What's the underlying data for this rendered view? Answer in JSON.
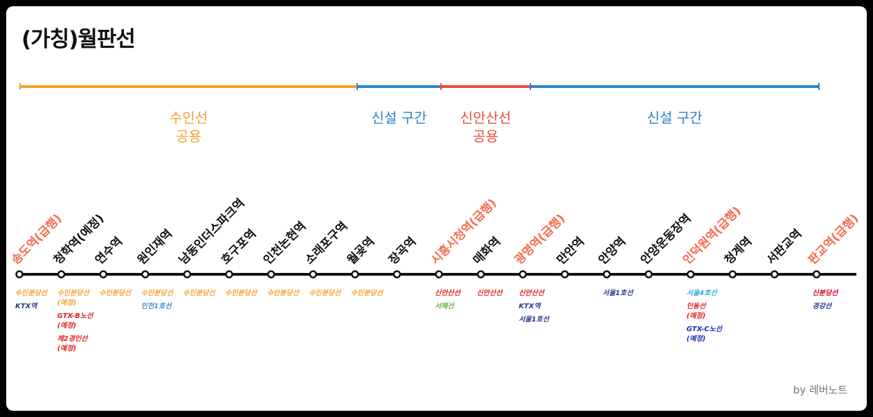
{
  "title": "(가칭)월판선",
  "credit": "by 레버노트",
  "colors": {
    "suin": "#F5A031",
    "new": "#2983C6",
    "sinansan": "#EB4E3F",
    "line": "#111111",
    "express": "#F46A4A",
    "normal": "#111111"
  },
  "sections": [
    {
      "label": "수인선\n공용",
      "color": "#F5A031",
      "from": 0,
      "to": 8
    },
    {
      "label": "신설 구간",
      "color": "#2983C6",
      "from": 8,
      "to": 10
    },
    {
      "label": "신안산선\n공용",
      "color": "#EB4E3F",
      "from": 10,
      "to": 12
    },
    {
      "label": "신설 구간",
      "color": "#2983C6",
      "from": 12,
      "to": 19
    }
  ],
  "stations": [
    {
      "name": "송도역(급행)",
      "express": true,
      "connections": [
        {
          "text": "수인분당선",
          "color": "#F5A031"
        },
        {
          "text": "KTX역",
          "color": "#2B3A8C"
        }
      ]
    },
    {
      "name": "청학역(예정)",
      "express": false,
      "connections": [
        {
          "text": "수인분당선\n(예정)",
          "color": "#F5A031"
        },
        {
          "text": "GTX-B노선\n(예정)",
          "color": "#E01E1E"
        },
        {
          "text": "제2경인선\n(예정)",
          "color": "#E01E1E"
        }
      ]
    },
    {
      "name": "연수역",
      "express": false,
      "connections": [
        {
          "text": "수인분당선",
          "color": "#F5A031"
        }
      ]
    },
    {
      "name": "원인재역",
      "express": false,
      "connections": [
        {
          "text": "수인분당선",
          "color": "#F5A031"
        },
        {
          "text": "인천1호선",
          "color": "#3C8DC9"
        }
      ]
    },
    {
      "name": "남동인더스파크역",
      "express": false,
      "connections": [
        {
          "text": "수인분당선",
          "color": "#F5A031"
        }
      ]
    },
    {
      "name": "호구포역",
      "express": false,
      "connections": [
        {
          "text": "수인분당선",
          "color": "#F5A031"
        }
      ]
    },
    {
      "name": "인천논현역",
      "express": false,
      "connections": [
        {
          "text": "수인분당선",
          "color": "#F5A031"
        }
      ]
    },
    {
      "name": "소래포구역",
      "express": false,
      "connections": [
        {
          "text": "수인분당선",
          "color": "#F5A031"
        }
      ]
    },
    {
      "name": "월곶역",
      "express": false,
      "connections": [
        {
          "text": "수인분당선",
          "color": "#F5A031"
        }
      ]
    },
    {
      "name": "장곡역",
      "express": false,
      "connections": []
    },
    {
      "name": "시흥시청역(급행)",
      "express": true,
      "connections": [
        {
          "text": "신안산선",
          "color": "#E01E1E"
        },
        {
          "text": "서해선",
          "color": "#6DAE3A"
        }
      ]
    },
    {
      "name": "매화역",
      "express": false,
      "connections": [
        {
          "text": "신안산선",
          "color": "#E01E1E"
        }
      ]
    },
    {
      "name": "광명역(급행)",
      "express": true,
      "connections": [
        {
          "text": "신안산선",
          "color": "#E01E1E"
        },
        {
          "text": "KTX역",
          "color": "#2B3A8C"
        },
        {
          "text": "서울1호선",
          "color": "#2B3A8C"
        }
      ]
    },
    {
      "name": "만안역",
      "express": false,
      "connections": []
    },
    {
      "name": "안양역",
      "express": false,
      "connections": [
        {
          "text": "서울1호선",
          "color": "#2B3A8C"
        }
      ]
    },
    {
      "name": "안양운동장역",
      "express": false,
      "connections": []
    },
    {
      "name": "인덕원역(급행)",
      "express": true,
      "connections": [
        {
          "text": "서울4호선",
          "color": "#3FA8DC"
        },
        {
          "text": "인동선\n(예정)",
          "color": "#E01E1E"
        },
        {
          "text": "GTX-C노선\n(예정)",
          "color": "#1B2DB5"
        }
      ]
    },
    {
      "name": "청계역",
      "express": false,
      "connections": []
    },
    {
      "name": "서판교역",
      "express": false,
      "connections": []
    },
    {
      "name": "판교역(급행)",
      "express": true,
      "connections": [
        {
          "text": "신분당선",
          "color": "#D4001F"
        },
        {
          "text": "경강선",
          "color": "#2B3A8C"
        }
      ]
    }
  ]
}
